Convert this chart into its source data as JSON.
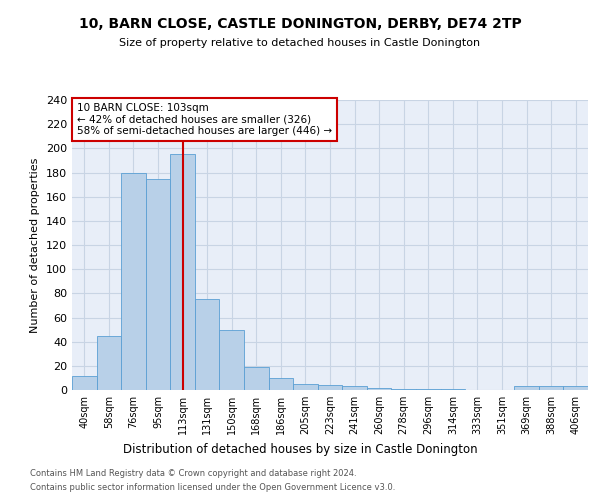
{
  "title1": "10, BARN CLOSE, CASTLE DONINGTON, DERBY, DE74 2TP",
  "title2": "Size of property relative to detached houses in Castle Donington",
  "xlabel": "Distribution of detached houses by size in Castle Donington",
  "ylabel": "Number of detached properties",
  "categories": [
    "40sqm",
    "58sqm",
    "76sqm",
    "95sqm",
    "113sqm",
    "131sqm",
    "150sqm",
    "168sqm",
    "186sqm",
    "205sqm",
    "223sqm",
    "241sqm",
    "260sqm",
    "278sqm",
    "296sqm",
    "314sqm",
    "333sqm",
    "351sqm",
    "369sqm",
    "388sqm",
    "406sqm"
  ],
  "values": [
    12,
    45,
    180,
    175,
    195,
    75,
    50,
    19,
    10,
    5,
    4,
    3,
    2,
    1,
    1,
    1,
    0,
    0,
    3,
    3,
    3
  ],
  "bar_color": "#b8d0e8",
  "bar_edge_color": "#5a9fd4",
  "grid_color": "#c8d4e4",
  "background_color": "#e8eef8",
  "vline_x": 4.0,
  "vline_color": "#cc0000",
  "annotation_text": "10 BARN CLOSE: 103sqm\n← 42% of detached houses are smaller (326)\n58% of semi-detached houses are larger (446) →",
  "annotation_box_color": "#ffffff",
  "annotation_box_edge": "#cc0000",
  "ylim": [
    0,
    240
  ],
  "yticks": [
    0,
    20,
    40,
    60,
    80,
    100,
    120,
    140,
    160,
    180,
    200,
    220,
    240
  ],
  "footer1": "Contains HM Land Registry data © Crown copyright and database right 2024.",
  "footer2": "Contains public sector information licensed under the Open Government Licence v3.0."
}
